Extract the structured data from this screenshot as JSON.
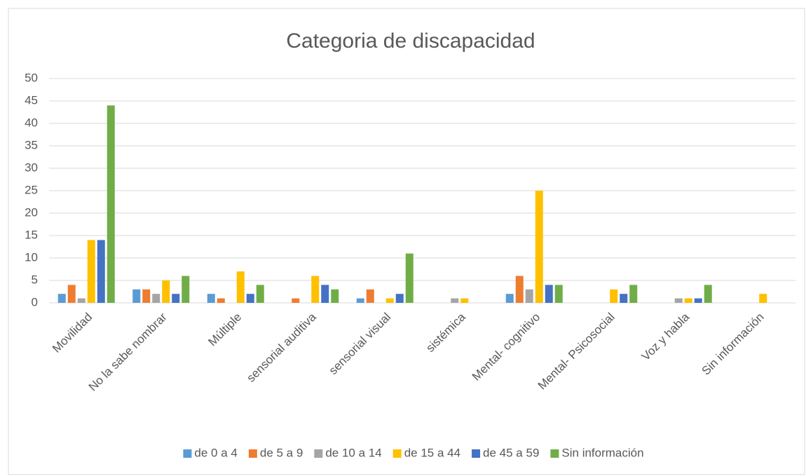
{
  "chart_data": {
    "type": "bar",
    "title": "Categoria de discapacidad",
    "categories": [
      "Movilidad",
      "No la sabe nombrar",
      "Múltiple",
      "sensorial auditiva",
      "sensorial visual",
      "sistémica",
      "Mental- cognitivo",
      "Mental- Psicosocial",
      "Voz y habla",
      "Sin información"
    ],
    "series": [
      {
        "name": "de 0 a 4",
        "color": "#5b9bd5",
        "values": [
          2,
          3,
          2,
          0,
          1,
          0,
          2,
          0,
          0,
          0
        ]
      },
      {
        "name": "de 5 a 9",
        "color": "#ed7d31",
        "values": [
          4,
          3,
          1,
          1,
          3,
          0,
          6,
          0,
          0,
          0
        ]
      },
      {
        "name": "de 10 a 14",
        "color": "#a5a5a5",
        "values": [
          1,
          2,
          0,
          0,
          0,
          1,
          3,
          0,
          1,
          0
        ]
      },
      {
        "name": "de 15 a 44",
        "color": "#ffc000",
        "values": [
          14,
          5,
          7,
          6,
          1,
          1,
          25,
          3,
          1,
          2
        ]
      },
      {
        "name": "de 45 a 59",
        "color": "#4472c4",
        "values": [
          14,
          2,
          2,
          4,
          2,
          0,
          4,
          2,
          1,
          0
        ]
      },
      {
        "name": "Sin información",
        "color": "#70ad47",
        "values": [
          44,
          6,
          4,
          3,
          11,
          0,
          4,
          4,
          4,
          0
        ]
      }
    ],
    "ylim": [
      0,
      50
    ],
    "yticks": [
      0,
      5,
      10,
      15,
      20,
      25,
      30,
      35,
      40,
      45,
      50
    ],
    "grid": true,
    "legend": "bottom"
  }
}
